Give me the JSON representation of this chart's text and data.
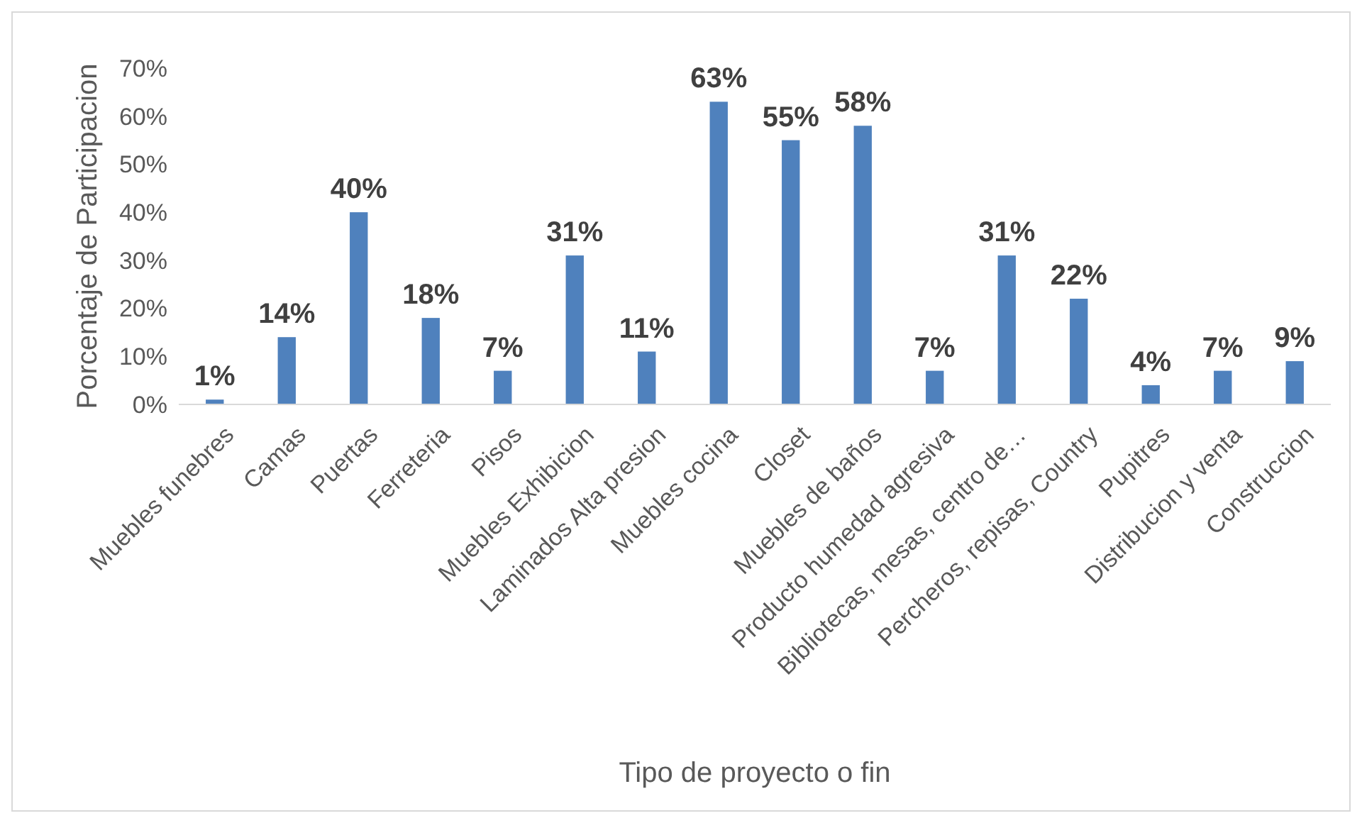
{
  "chart_data": {
    "type": "bar",
    "xlabel": "Tipo de proyecto o fin",
    "ylabel": "Porcentaje de Participacion",
    "categories": [
      "Muebles funebres",
      "Camas",
      "Puertas",
      "Ferreteria",
      "Pisos",
      "Muebles Exhibicion",
      "Laminados Alta presion",
      "Muebles cocina",
      "Closet",
      "Muebles de baños",
      "Producto humedad agresiva",
      "Bibliotecas, mesas, centro de…",
      "Percheros, repisas, Country",
      "Pupitres",
      "Distribucion y venta",
      "Construccion"
    ],
    "values": [
      1,
      14,
      40,
      18,
      7,
      31,
      11,
      63,
      55,
      58,
      7,
      31,
      22,
      4,
      7,
      9
    ],
    "value_labels": [
      "1%",
      "14%",
      "40%",
      "18%",
      "7%",
      "31%",
      "11%",
      "63%",
      "55%",
      "58%",
      "7%",
      "31%",
      "22%",
      "4%",
      "7%",
      "9%"
    ],
    "color": "#4f81bd",
    "ylim": [
      0,
      70
    ],
    "yticks": [
      {
        "value": 0,
        "label": "0%"
      },
      {
        "value": 10,
        "label": "10%"
      },
      {
        "value": 20,
        "label": "20%"
      },
      {
        "value": 30,
        "label": "30%"
      },
      {
        "value": 40,
        "label": "40%"
      },
      {
        "value": 50,
        "label": "50%"
      },
      {
        "value": 60,
        "label": "60%"
      },
      {
        "value": 70,
        "label": "70%"
      }
    ],
    "grid": false
  }
}
